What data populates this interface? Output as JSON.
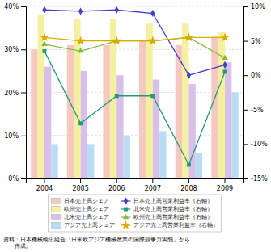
{
  "chart_data": {
    "type": "bar",
    "categories": [
      2004,
      2005,
      2006,
      2007,
      2008,
      2009
    ],
    "series": [
      {
        "name": "日本売上高シェア",
        "type": "bar",
        "axis": "y",
        "color": "#f5c8c0",
        "values": [
          30,
          31,
          31,
          32,
          31,
          33
        ]
      },
      {
        "name": "欧州売上高シェア",
        "type": "bar",
        "axis": "y",
        "color": "#f5f0a0",
        "values": [
          38,
          37,
          37,
          36,
          36,
          34
        ]
      },
      {
        "name": "北米売上高シェア",
        "type": "bar",
        "axis": "y",
        "color": "#d8c0e8",
        "values": [
          26,
          25,
          24,
          23,
          22,
          27
        ]
      },
      {
        "name": "アジア売上高シェア",
        "type": "bar",
        "axis": "y",
        "color": "#b8ddf5",
        "values": [
          8,
          8,
          10,
          11,
          6,
          20
        ]
      },
      {
        "name": "日本売上高営業利益率（右軸）",
        "type": "line",
        "axis": "y2",
        "color": "#4040cc",
        "marker": "diamond",
        "values": [
          9.5,
          9.3,
          9.5,
          9.0,
          0.0,
          1.5
        ]
      },
      {
        "name": "北米売上高営業利益率（右軸）",
        "type": "line",
        "axis": "y2",
        "color": "#229977",
        "marker": "square",
        "values": [
          3.5,
          -7.0,
          -3.0,
          -3.0,
          -13.0,
          0.5
        ]
      },
      {
        "name": "欧州売上高営業利益率（右軸）",
        "type": "line",
        "axis": "y2",
        "color": "#88bb44",
        "marker": "triangle",
        "values": [
          4.5,
          3.5,
          5.0,
          5.0,
          5.5,
          2.5
        ]
      },
      {
        "name": "アジア売上高営業利益率（右軸）",
        "type": "line",
        "axis": "y2",
        "color": "#ddaa00",
        "marker": "star",
        "values": [
          5.5,
          5.0,
          5.0,
          5.0,
          5.5,
          5.5
        ]
      }
    ],
    "ylim": [
      0,
      40
    ],
    "yticks": [
      {
        "value": 0,
        "label": "0%"
      },
      {
        "value": 10,
        "label": "10%"
      },
      {
        "value": 20,
        "label": "20%"
      },
      {
        "value": 30,
        "label": "30%"
      },
      {
        "value": 40,
        "label": "40%"
      }
    ],
    "y2lim": [
      -15,
      10
    ],
    "y2ticks": [
      {
        "value": -15,
        "label": "-15%"
      },
      {
        "value": -10,
        "label": "-10%"
      },
      {
        "value": -5,
        "label": "-5%"
      },
      {
        "value": 0,
        "label": "0%"
      },
      {
        "value": 5,
        "label": "5%"
      },
      {
        "value": 10,
        "label": "10%"
      }
    ],
    "grid": true,
    "legend": "bottom",
    "footnote": "資料：日本機械輸出組合「日米欧アジア機械産業の国際競争力実態」から\n　　作成。"
  }
}
